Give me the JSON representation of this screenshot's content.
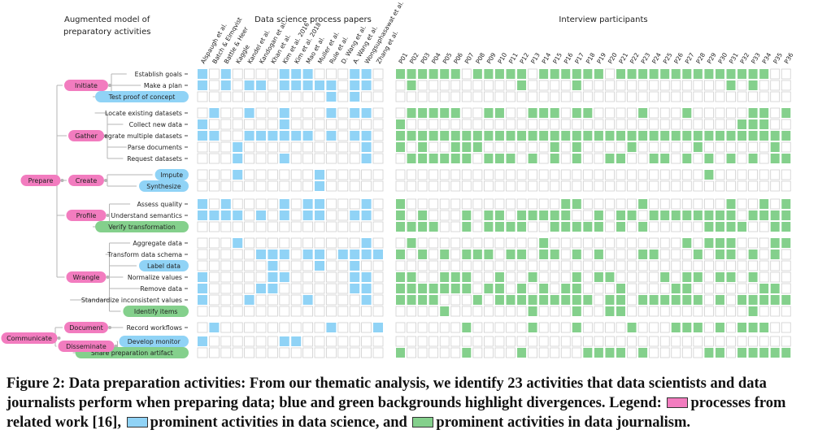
{
  "figure": {
    "header_model": "Augmented model of",
    "header_model_2": "preparatory activities",
    "header_papers": "Data science process papers",
    "header_participants": "Interview participants",
    "papers": [
      "Alspaugh et al.",
      "Batch & Elmqvist",
      "Battle & Heer",
      "Kaggle",
      "Kandel et al.",
      "Kandogan et al.",
      "Khan et al.",
      "Kim et al. 2016",
      "Kim et al. 2018",
      "Mao et al.",
      "Muller et al.",
      "Rule et al.",
      "D. Wang et al.",
      "A. Wang et al.",
      "Wongsuphasawat et al.",
      "Zhang et al."
    ],
    "participants": [
      "P01",
      "P02",
      "P03",
      "P04",
      "P05",
      "P06",
      "P07",
      "P08",
      "P09",
      "P10",
      "P11",
      "P12",
      "P13",
      "P14",
      "P15",
      "P16",
      "P17",
      "P18",
      "P19",
      "P20",
      "P21",
      "P22",
      "P23",
      "P24",
      "P25",
      "P26",
      "P27",
      "P28",
      "P29",
      "P30",
      "P31",
      "P32",
      "P33",
      "P34",
      "P35",
      "P36"
    ],
    "top_nodes": [
      {
        "label": "Prepare",
        "children": [
          "Initiate",
          "Gather",
          "Create",
          "Profile",
          "Wrangle"
        ]
      },
      {
        "label": "Communicate",
        "children": [
          "Document",
          "Disseminate"
        ]
      }
    ],
    "processes": [
      {
        "label": "Initiate",
        "type": "pink"
      },
      {
        "label": "Gather",
        "type": "pink"
      },
      {
        "label": "Create",
        "type": "pink"
      },
      {
        "label": "Profile",
        "type": "pink"
      },
      {
        "label": "Wrangle",
        "type": "pink"
      },
      {
        "label": "Document",
        "type": "pink"
      },
      {
        "label": "Disseminate",
        "type": "pink"
      }
    ],
    "activities": [
      {
        "label": "Establish goals",
        "type": "plain",
        "process": "Initiate",
        "papers": "1010000111000110",
        "participants": "111111011111011111101111111111111100"
      },
      {
        "label": "Make a plan",
        "type": "plain",
        "process": "Initiate",
        "papers": "1010110111110110",
        "participants": "010000000001000010000000000000101000"
      },
      {
        "label": "Test proof of concept",
        "type": "blue",
        "process": "Initiate",
        "papers": "0000000000010100",
        "participants": "000000000000000000000000000000000000"
      },
      {
        "label": "Locate existing datasets",
        "type": "plain",
        "process": "Gather",
        "papers": "0100100100010110",
        "participants": "011111001100111011000010001000001101"
      },
      {
        "label": "Collect new data",
        "type": "plain",
        "process": "Gather",
        "papers": "1000000100000000",
        "participants": "100000000000000000000000000000011100"
      },
      {
        "label": "Integrate multiple datasets",
        "type": "plain",
        "process": "Gather",
        "papers": "1100111111010110",
        "participants": "111111111111111111111111111111111111"
      },
      {
        "label": "Parse documents",
        "type": "plain",
        "process": "Gather",
        "papers": "0001000000000010",
        "participants": "101001110000001010000100000100000010"
      },
      {
        "label": "Request datasets",
        "type": "plain",
        "process": "Gather",
        "papers": "0001000100000010",
        "participants": "011111101110101010011001101010101011"
      },
      {
        "label": "Impute",
        "type": "blue",
        "process": "Create",
        "papers": "0001000000100000",
        "participants": "000000000000000000000000000010000000"
      },
      {
        "label": "Synthesize",
        "type": "blue",
        "process": "Create",
        "papers": "0000000000100000",
        "participants": "000000000000000000000000000000000000"
      },
      {
        "label": "Assess quality",
        "type": "plain",
        "process": "Profile",
        "papers": "1010000101100010",
        "participants": "100000000000000110000010000000100101"
      },
      {
        "label": "Understand semantics",
        "type": "plain",
        "process": "Profile",
        "papers": "1111010101100110",
        "participants": "101000101101111100101101111111101111"
      },
      {
        "label": "Verify transformation",
        "type": "green",
        "process": "Profile",
        "papers": "0000000000000000",
        "participants": "111100101111001111101010000011110011"
      },
      {
        "label": "Aggregate data",
        "type": "plain",
        "process": "Wrangle",
        "papers": "0001000000000010",
        "participants": "010000000000010000000000001011100011"
      },
      {
        "label": "Transform data schema",
        "type": "plain",
        "process": "Wrangle",
        "papers": "0000011101101111",
        "participants": "101010111011011010100011000101101010"
      },
      {
        "label": "Label data",
        "type": "blue",
        "process": "Wrangle",
        "papers": "0000001000100100",
        "participants": "000000000000000000000000000000000000"
      },
      {
        "label": "Normalize values",
        "type": "plain",
        "process": "Wrangle",
        "papers": "1000001100000110",
        "participants": "110011100100100010110000101101101000"
      },
      {
        "label": "Remove data",
        "type": "plain",
        "process": "Wrangle",
        "papers": "1000011000000110",
        "participants": "111111101101010110001000011000000110"
      },
      {
        "label": "Standardize inconsistent values",
        "type": "plain",
        "process": "Wrangle",
        "papers": "1000100001000010",
        "participants": "111100010111111111011011111101011111"
      },
      {
        "label": "Identify items",
        "type": "green",
        "process": "Wrangle",
        "papers": "0000000000000000",
        "participants": "000010000000100010011000000000001000"
      },
      {
        "label": "Record workflows",
        "type": "plain",
        "process": "Document",
        "papers": "0100000000010001",
        "participants": "000000100000100010000100011101011100"
      },
      {
        "label": "Develop monitor",
        "type": "blue",
        "process": "Disseminate",
        "papers": "1000000110000000",
        "participants": "000000000000000000000000000000000000"
      },
      {
        "label": "Share preparation artifact",
        "type": "green",
        "process": "Disseminate",
        "papers": "0000000000000000",
        "participants": "100000100001000001111010000011011111"
      }
    ]
  },
  "colors": {
    "pink": "#f27cbf",
    "blue": "#90d3f6",
    "green": "#84d08c",
    "empty": "#ffffff",
    "grid": "#cfcfcf",
    "line": "#b5b5b5"
  },
  "caption": {
    "bold": "Figure 2: Data preparation activities: From our thematic analysis, we identify 23 activities that data scientists and data journalists perform when preparing data; blue and green backgrounds highlight divergences. Legend:",
    "legend_pink": "processes from related work [16],",
    "legend_blue": "prominent activities in data science, and",
    "legend_green": "prominent activities in data journalism."
  }
}
